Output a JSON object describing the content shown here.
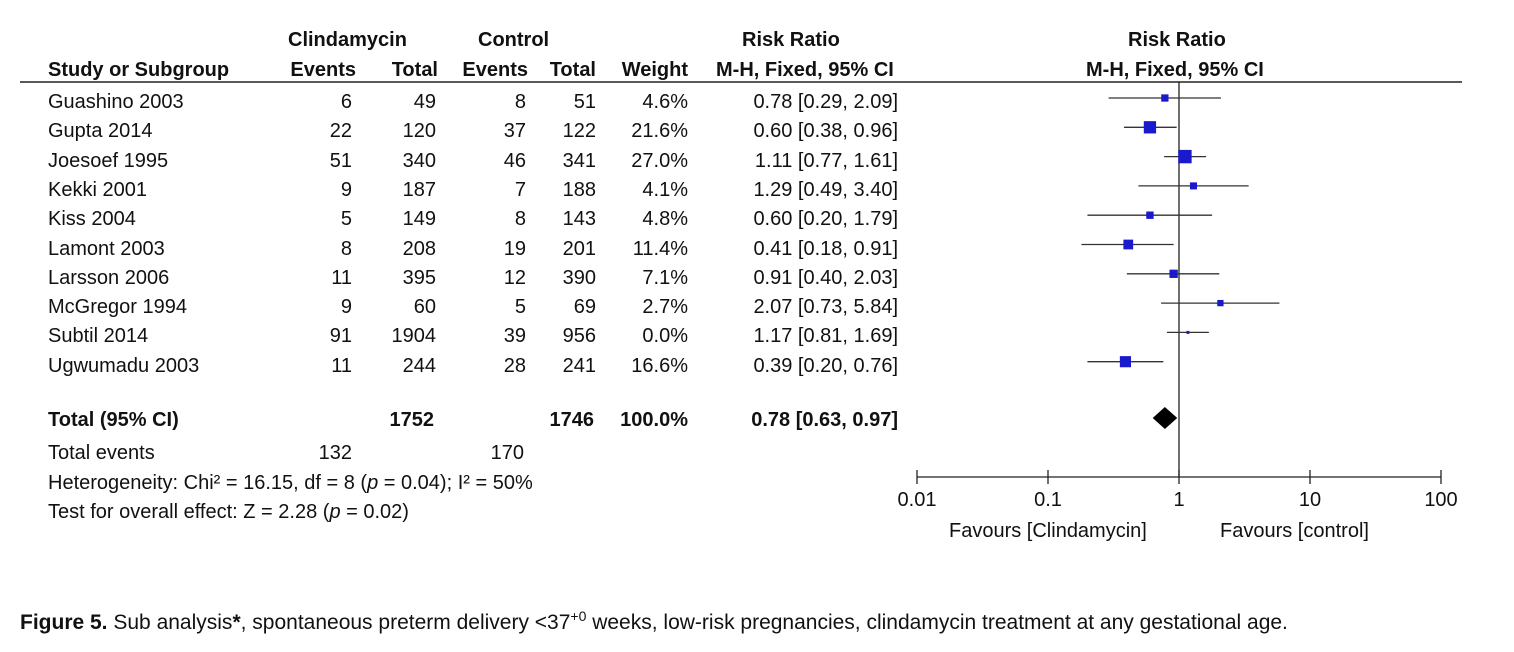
{
  "header": {
    "group1_name": "Clindamycin",
    "group2_name": "Control",
    "risk_ratio": "Risk Ratio",
    "study_col": "Study or Subgroup",
    "events": "Events",
    "total": "Total",
    "weight": "Weight",
    "method": "M-H, Fixed, 95% CI",
    "plot_title": "Risk Ratio",
    "plot_method": "M-H, Fixed, 95% CI"
  },
  "studies": [
    {
      "name": "Guashino 2003",
      "e1": "6",
      "t1": "49",
      "e2": "8",
      "t2": "51",
      "weight": "4.6%",
      "rr_text": "0.78 [0.29, 2.09]"
    },
    {
      "name": "Gupta 2014",
      "e1": "22",
      "t1": "120",
      "e2": "37",
      "t2": "122",
      "weight": "21.6%",
      "rr_text": "0.60 [0.38, 0.96]"
    },
    {
      "name": "Joesoef 1995",
      "e1": "51",
      "t1": "340",
      "e2": "46",
      "t2": "341",
      "weight": "27.0%",
      "rr_text": "1.11 [0.77, 1.61]"
    },
    {
      "name": "Kekki 2001",
      "e1": "9",
      "t1": "187",
      "e2": "7",
      "t2": "188",
      "weight": "4.1%",
      "rr_text": "1.29 [0.49, 3.40]"
    },
    {
      "name": "Kiss 2004",
      "e1": "5",
      "t1": "149",
      "e2": "8",
      "t2": "143",
      "weight": "4.8%",
      "rr_text": "0.60 [0.20, 1.79]"
    },
    {
      "name": "Lamont 2003",
      "e1": "8",
      "t1": "208",
      "e2": "19",
      "t2": "201",
      "weight": "11.4%",
      "rr_text": "0.41 [0.18, 0.91]"
    },
    {
      "name": "Larsson 2006",
      "e1": "11",
      "t1": "395",
      "e2": "12",
      "t2": "390",
      "weight": "7.1%",
      "rr_text": "0.91 [0.40, 2.03]"
    },
    {
      "name": "McGregor 1994",
      "e1": "9",
      "t1": "60",
      "e2": "5",
      "t2": "69",
      "weight": "2.7%",
      "rr_text": "2.07 [0.73, 5.84]"
    },
    {
      "name": "Subtil 2014",
      "e1": "91",
      "t1": "1904",
      "e2": "39",
      "t2": "956",
      "weight": "0.0%",
      "rr_text": "1.17 [0.81, 1.69]"
    },
    {
      "name": "Ugwumadu 2003",
      "e1": "11",
      "t1": "244",
      "e2": "28",
      "t2": "241",
      "weight": "16.6%",
      "rr_text": "0.39 [0.20, 0.76]"
    }
  ],
  "total": {
    "label": "Total (95% CI)",
    "t1": "1752",
    "t2": "1746",
    "weight": "100.0%",
    "rr_text": "0.78 [0.63, 0.97]",
    "events_label": "Total events",
    "e1": "132",
    "e2": "170"
  },
  "stats": {
    "heterogeneity_pre": "Heterogeneity: Chi² = 16.15, df = 8 (",
    "heterogeneity_p": "p",
    "heterogeneity_post": " = 0.04); I² = 50%",
    "overall_pre": "Test for overall effect: Z = 2.28 (",
    "overall_p": "p",
    "overall_post": " = 0.02)"
  },
  "chart_data": {
    "type": "forest",
    "x_scale": "log",
    "xlim": [
      0.01,
      100
    ],
    "x_ticks": [
      0.01,
      0.1,
      1,
      10,
      100
    ],
    "x_tick_labels": [
      "0.01",
      "0.1",
      "1",
      "10",
      "100"
    ],
    "favours_left": "Favours [Clindamycin]",
    "favours_right": "Favours [control]",
    "marker_color": "#1a1acc",
    "points": [
      {
        "rr": 0.78,
        "lo": 0.29,
        "hi": 2.09,
        "weight": 4.6
      },
      {
        "rr": 0.6,
        "lo": 0.38,
        "hi": 0.96,
        "weight": 21.6
      },
      {
        "rr": 1.11,
        "lo": 0.77,
        "hi": 1.61,
        "weight": 27.0
      },
      {
        "rr": 1.29,
        "lo": 0.49,
        "hi": 3.4,
        "weight": 4.1
      },
      {
        "rr": 0.6,
        "lo": 0.2,
        "hi": 1.79,
        "weight": 4.8
      },
      {
        "rr": 0.41,
        "lo": 0.18,
        "hi": 0.91,
        "weight": 11.4
      },
      {
        "rr": 0.91,
        "lo": 0.4,
        "hi": 2.03,
        "weight": 7.1
      },
      {
        "rr": 2.07,
        "lo": 0.73,
        "hi": 5.84,
        "weight": 2.7
      },
      {
        "rr": 1.17,
        "lo": 0.81,
        "hi": 1.69,
        "weight": 0.0
      },
      {
        "rr": 0.39,
        "lo": 0.2,
        "hi": 0.76,
        "weight": 16.6
      }
    ],
    "total": {
      "rr": 0.78,
      "lo": 0.63,
      "hi": 0.97
    }
  },
  "caption": {
    "figure_label": "Figure 5.",
    "text_a": " Sub analysis",
    "asterisk": "*",
    "text_b": ", spontaneous preterm delivery <37",
    "superscript": "+0",
    "text_c": " weeks, low-risk pregnancies, clindamycin treatment at any gestational age."
  }
}
